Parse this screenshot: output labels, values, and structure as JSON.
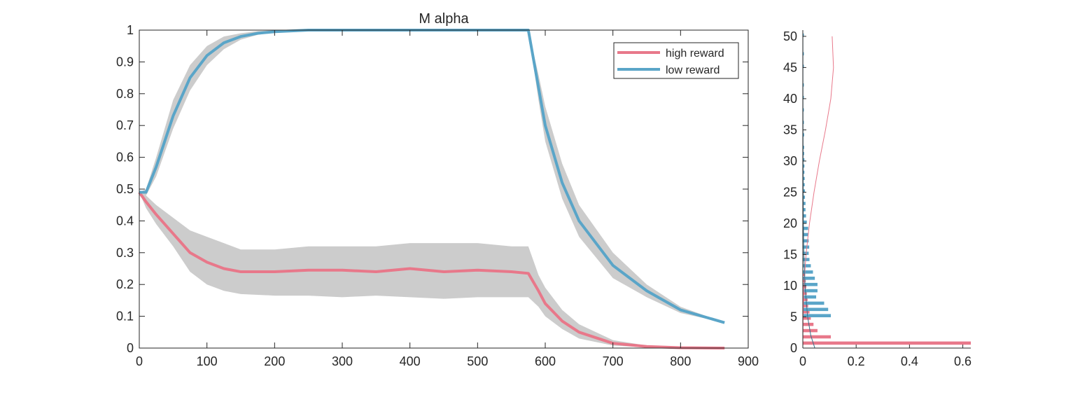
{
  "chart_data": [
    {
      "type": "line",
      "title": "M  alpha",
      "xlabel": "",
      "ylabel": "",
      "xlim": [
        0,
        900
      ],
      "ylim": [
        0,
        1
      ],
      "xticks": [
        0,
        100,
        200,
        300,
        400,
        500,
        600,
        700,
        800,
        900
      ],
      "yticks": [
        0,
        0.1,
        0.2,
        0.3,
        0.4,
        0.5,
        0.6,
        0.7,
        0.8,
        0.9,
        1
      ],
      "grid": false,
      "legend_position": "top-right",
      "shaded_band_color": "#cccccc",
      "series": [
        {
          "name": "high reward",
          "color": "#e8788a",
          "x": [
            0,
            10,
            25,
            50,
            75,
            100,
            125,
            150,
            200,
            250,
            300,
            350,
            400,
            450,
            500,
            550,
            575,
            590,
            600,
            625,
            650,
            700,
            750,
            800,
            865
          ],
          "values": [
            0.49,
            0.46,
            0.42,
            0.36,
            0.3,
            0.27,
            0.25,
            0.24,
            0.24,
            0.245,
            0.245,
            0.24,
            0.25,
            0.24,
            0.245,
            0.24,
            0.235,
            0.18,
            0.14,
            0.085,
            0.05,
            0.015,
            0.005,
            0.001,
            0.0
          ],
          "band_upper": [
            0.49,
            0.48,
            0.45,
            0.41,
            0.37,
            0.35,
            0.33,
            0.31,
            0.31,
            0.32,
            0.32,
            0.32,
            0.33,
            0.33,
            0.33,
            0.32,
            0.32,
            0.23,
            0.19,
            0.12,
            0.075,
            0.025,
            0.008,
            0.002,
            0.0
          ],
          "band_lower": [
            0.49,
            0.44,
            0.39,
            0.32,
            0.24,
            0.2,
            0.18,
            0.17,
            0.165,
            0.165,
            0.16,
            0.165,
            0.16,
            0.155,
            0.16,
            0.16,
            0.16,
            0.13,
            0.1,
            0.06,
            0.03,
            0.008,
            0.002,
            0.0,
            0.0
          ]
        },
        {
          "name": "low reward",
          "color": "#5aa5c8",
          "x": [
            0,
            10,
            25,
            50,
            75,
            100,
            125,
            150,
            175,
            200,
            250,
            300,
            400,
            500,
            575,
            590,
            600,
            625,
            650,
            700,
            750,
            800,
            865
          ],
          "values": [
            0.49,
            0.49,
            0.57,
            0.73,
            0.85,
            0.92,
            0.96,
            0.98,
            0.99,
            0.995,
            1.0,
            1.0,
            1.0,
            1.0,
            1.0,
            0.82,
            0.7,
            0.52,
            0.4,
            0.26,
            0.18,
            0.12,
            0.08
          ],
          "band_upper": [
            0.49,
            0.5,
            0.6,
            0.78,
            0.89,
            0.95,
            0.98,
            0.99,
            0.997,
            1.0,
            1.0,
            1.0,
            1.0,
            1.0,
            1.0,
            0.86,
            0.76,
            0.58,
            0.45,
            0.3,
            0.2,
            0.13,
            0.08
          ],
          "band_lower": [
            0.49,
            0.48,
            0.54,
            0.69,
            0.81,
            0.89,
            0.94,
            0.97,
            0.985,
            0.993,
            0.999,
            1.0,
            1.0,
            1.0,
            1.0,
            0.78,
            0.65,
            0.47,
            0.35,
            0.22,
            0.16,
            0.11,
            0.08
          ]
        }
      ]
    },
    {
      "type": "bar",
      "orientation": "horizontal",
      "xlim": [
        0,
        0.63
      ],
      "ylim": [
        0,
        51
      ],
      "xticks": [
        0,
        0.2,
        0.4,
        0.6
      ],
      "yticks": [
        0,
        5,
        10,
        15,
        20,
        25,
        30,
        35,
        40,
        45,
        50
      ],
      "grid": false,
      "series": [
        {
          "color": "#e8788a",
          "y": [
            0.8,
            1.8,
            2.8,
            3.8,
            4.8,
            5.8,
            6.8,
            7.8,
            8.8,
            9.8,
            10.8,
            11.8
          ],
          "values": [
            0.63,
            0.105,
            0.055,
            0.04,
            0.03,
            0.025,
            0.02,
            0.018,
            0.015,
            0.013,
            0.011,
            0.009
          ],
          "fit_curve": {
            "y": [
              0,
              5,
              10,
              15,
              20,
              25,
              30,
              35,
              40,
              45,
              50
            ],
            "x": [
              0.0,
              0.001,
              0.004,
              0.012,
              0.025,
              0.042,
              0.062,
              0.085,
              0.105,
              0.115,
              0.11
            ]
          }
        },
        {
          "color": "#5aa5c8",
          "y": [
            5.2,
            6.2,
            7.2,
            8.2,
            9.2,
            10.2,
            11.2,
            12.2,
            13.2,
            14.2,
            15.2,
            16.2,
            17.2,
            18.2,
            19.2,
            20.2,
            21.2,
            22.2,
            23.2,
            24.2,
            25.2,
            26.2,
            27.2,
            28.2,
            29.2,
            30.2,
            31.2,
            32.2,
            34.2,
            36.2,
            38.2,
            40.2,
            42.2,
            45.2,
            47.2,
            50.2
          ],
          "values": [
            0.105,
            0.095,
            0.08,
            0.05,
            0.055,
            0.055,
            0.045,
            0.038,
            0.03,
            0.025,
            0.022,
            0.024,
            0.022,
            0.02,
            0.02,
            0.015,
            0.012,
            0.01,
            0.01,
            0.008,
            0.008,
            0.007,
            0.007,
            0.006,
            0.006,
            0.006,
            0.005,
            0.005,
            0.005,
            0.004,
            0.004,
            0.004,
            0.004,
            0.004,
            0.004,
            0.004
          ],
          "fit_curve": {
            "y": [
              0,
              2,
              5,
              10,
              15,
              20,
              30,
              40,
              50
            ],
            "x": [
              0.045,
              0.03,
              0.018,
              0.008,
              0.004,
              0.002,
              0.001,
              0.0005,
              0.0003
            ]
          }
        }
      ]
    }
  ]
}
